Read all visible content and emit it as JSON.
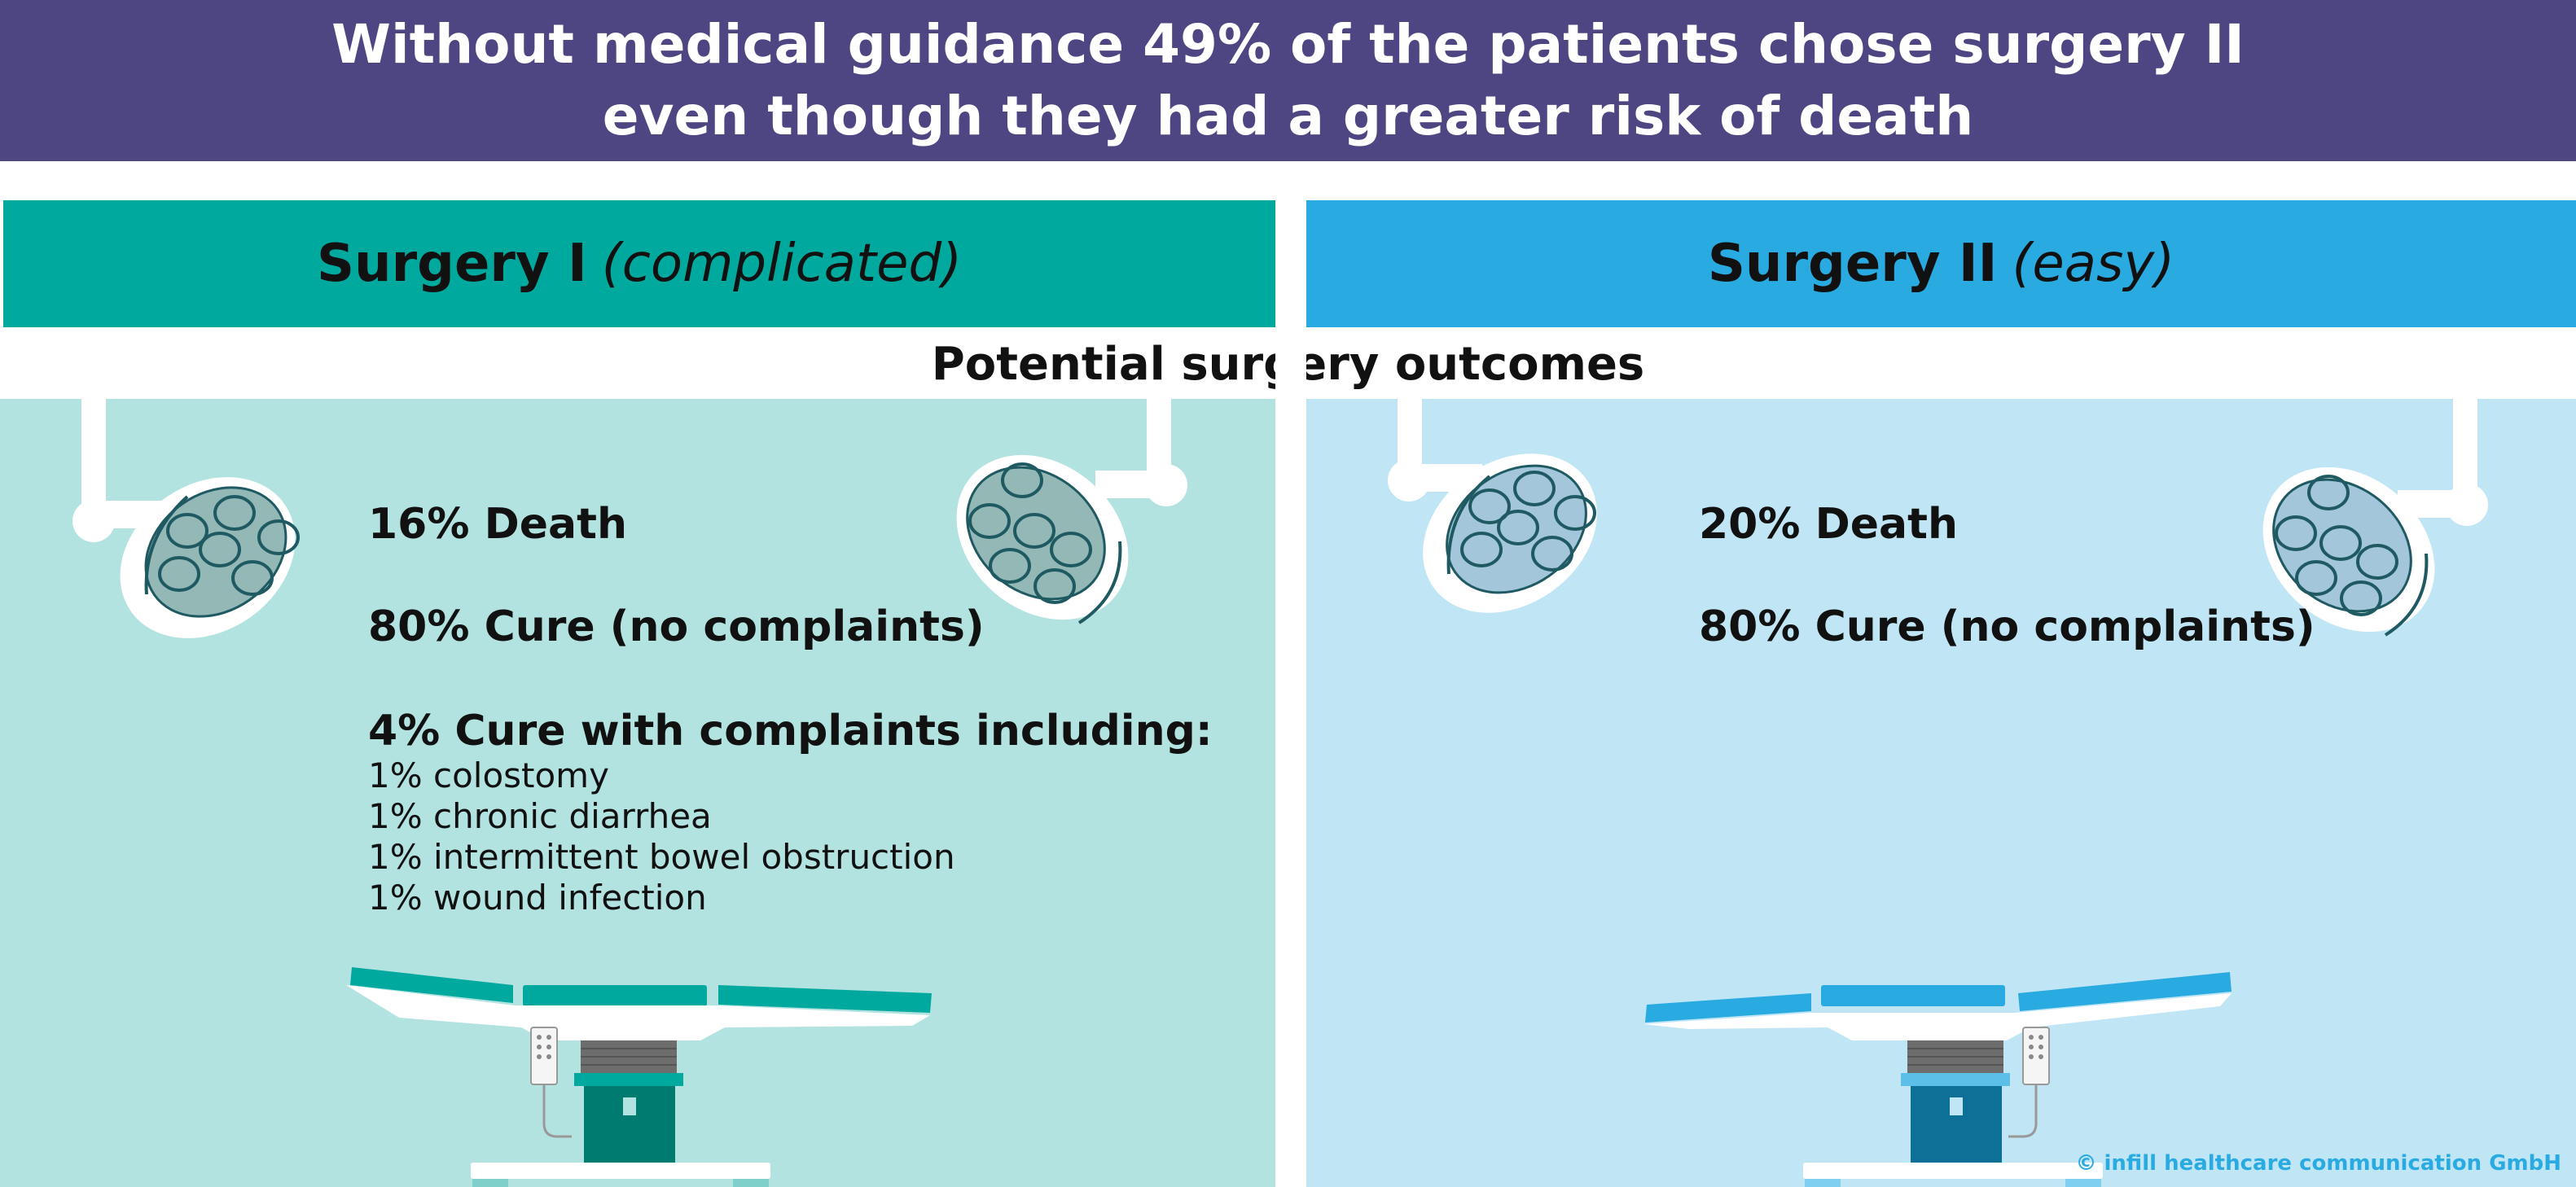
{
  "header": {
    "line1": "Without medical guidance 49% of the patients chose surgery II",
    "line2": "even though they had a greater risk of death"
  },
  "surgery1": {
    "name": "Surgery I",
    "qualifier": "(complicated)",
    "death": "16% Death",
    "cure": "80% Cure (no complaints)",
    "complaints_title": "4% Cure with complaints including:",
    "complaints": [
      "1% colostomy",
      "1% chronic diarrhea",
      "1% intermittent bowel obstruction",
      "1% wound infection"
    ]
  },
  "surgery2": {
    "name": "Surgery II",
    "qualifier": "(easy)",
    "death": "20% Death",
    "cure": "80% Cure (no complaints)"
  },
  "subtitle": "Potential surgery outcomes",
  "copyright": "© infill healthcare communication GmbH",
  "icons": [
    "surgical-lamp-icon",
    "operating-table-icon"
  ],
  "colors": {
    "banner": "#4e4682",
    "surgery1_accent": "#00a99d",
    "surgery1_bg": "#b2e3e0",
    "surgery2_accent": "#29abe2",
    "surgery2_bg": "#c0e5f5"
  }
}
